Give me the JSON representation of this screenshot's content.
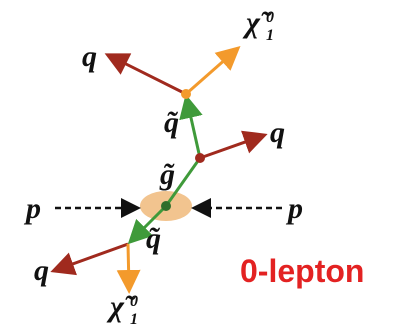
{
  "labels": {
    "quark_top": "q",
    "neutralino_top": {
      "text": "χ̃",
      "sup": "0",
      "sub": "1"
    },
    "squark_top": "q̃",
    "quark_right": "q",
    "gluino": "g̃",
    "proton_left": "p",
    "proton_right": "p",
    "squark_bottom": "q̃",
    "quark_bottom": "q",
    "neutralino_bottom": {
      "text": "χ̃",
      "sup": "0",
      "sub": "1"
    }
  },
  "caption": "0-lepton"
}
